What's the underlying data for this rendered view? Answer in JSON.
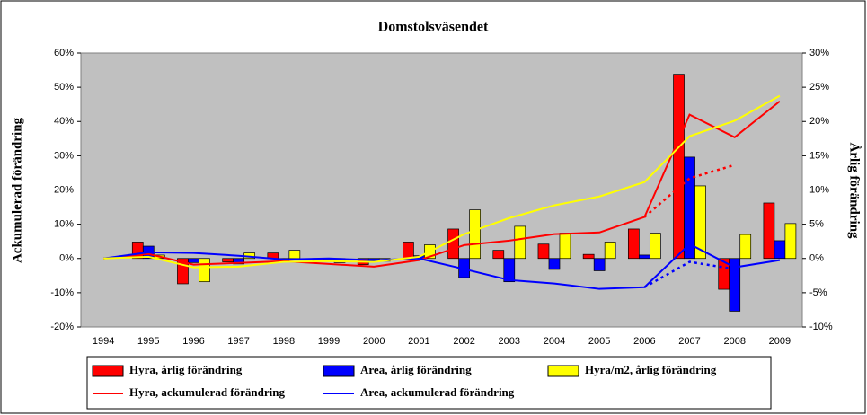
{
  "chart_data": {
    "type": "bar-line",
    "title": "Domstolsväsendet",
    "ylabel": "Ackumulerad förändring",
    "y2label": "Årlig förändring",
    "categories": [
      "1994",
      "1995",
      "1996",
      "1997",
      "1998",
      "1999",
      "2000",
      "2001",
      "2002",
      "2003",
      "2004",
      "2005",
      "2006",
      "2007",
      "2008",
      "2009"
    ],
    "ylim": [
      -20,
      60
    ],
    "yticks": [
      {
        "value": -20,
        "label": "-20%"
      },
      {
        "value": -10,
        "label": "-10%"
      },
      {
        "value": 0,
        "label": "0%"
      },
      {
        "value": 10,
        "label": "10%"
      },
      {
        "value": 20,
        "label": "20%"
      },
      {
        "value": 30,
        "label": "30%"
      },
      {
        "value": 40,
        "label": "40%"
      },
      {
        "value": 50,
        "label": "50%"
      },
      {
        "value": 60,
        "label": "60%"
      }
    ],
    "y2lim": [
      -10,
      30
    ],
    "y2ticks": [
      {
        "value": -10,
        "label": "-10%"
      },
      {
        "value": -5,
        "label": "-5%"
      },
      {
        "value": 0,
        "label": "0%"
      },
      {
        "value": 5,
        "label": "5%"
      },
      {
        "value": 10,
        "label": "10%"
      },
      {
        "value": 15,
        "label": "15%"
      },
      {
        "value": 20,
        "label": "20%"
      },
      {
        "value": 25,
        "label": "25%"
      },
      {
        "value": 30,
        "label": "30%"
      }
    ],
    "grid": false,
    "series": [
      {
        "name": "Hyra, årlig förändring",
        "type": "bar",
        "axis": "y2",
        "color": "#ff0000",
        "values": [
          null,
          2.4,
          -3.7,
          -0.5,
          0.8,
          -0.4,
          -0.9,
          2.4,
          4.3,
          1.2,
          2.1,
          0.6,
          4.3,
          26.9,
          -4.5,
          8.1
        ]
      },
      {
        "name": "Area, årlig förändring",
        "type": "bar",
        "axis": "y2",
        "color": "#0000ff",
        "values": [
          null,
          1.8,
          -0.6,
          -0.8,
          -0.5,
          -0.1,
          -0.4,
          0.4,
          -2.8,
          -3.4,
          -1.6,
          -1.8,
          0.5,
          14.8,
          -7.7,
          2.6
        ]
      },
      {
        "name": "Hyra/m2, årlig förändring",
        "type": "bar",
        "axis": "y2",
        "color": "#ffff00",
        "values": [
          null,
          0.5,
          -3.4,
          0.8,
          1.2,
          -0.6,
          -0.4,
          2.0,
          7.1,
          4.7,
          3.7,
          2.4,
          3.7,
          10.6,
          3.5,
          5.1
        ]
      },
      {
        "name": "Hyra, ackumulerad förändring",
        "type": "line",
        "color": "#ff0000",
        "values": [
          0,
          1.3,
          -1.8,
          -1.3,
          -0.8,
          -1.6,
          -2.4,
          -0.5,
          3.9,
          5.2,
          7.1,
          7.6,
          12.1,
          42,
          35.4,
          45.9
        ]
      },
      {
        "name": "Area, ackumulerad förändring",
        "type": "line",
        "color": "#0000ff",
        "values": [
          0,
          1.8,
          1.6,
          0.8,
          -0.3,
          0,
          -0.5,
          0,
          -3.1,
          -6.3,
          -7.3,
          -8.9,
          -8.4,
          4.2,
          -2.6,
          -0.5
        ]
      },
      {
        "type": "line",
        "color": "#ffff00",
        "values": [
          0,
          0.5,
          -2.6,
          -2.4,
          -1,
          -0.8,
          -1,
          0.5,
          7.1,
          11.8,
          15.5,
          18.1,
          22.3,
          35.7,
          40.2,
          47.5
        ]
      },
      {
        "type": "line",
        "color": "#ff0000",
        "dashed": true,
        "values": [
          null,
          null,
          null,
          null,
          null,
          null,
          null,
          null,
          null,
          null,
          null,
          null,
          12.1,
          23.4,
          27.3,
          null
        ]
      },
      {
        "type": "line",
        "color": "#0000ff",
        "dashed": true,
        "values": [
          null,
          null,
          null,
          null,
          null,
          null,
          null,
          null,
          null,
          null,
          null,
          null,
          -8.4,
          -1,
          -3.1,
          null
        ]
      }
    ]
  }
}
